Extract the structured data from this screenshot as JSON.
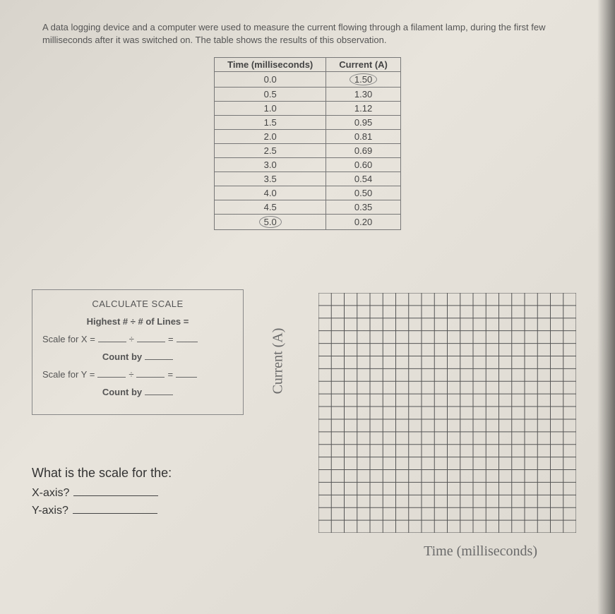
{
  "intro": "A data logging device and a computer were used to measure the current flowing through a filament lamp, during the first few milliseconds after it was switched on. The table shows the results of this observation.",
  "data_table": {
    "headers": [
      "Time (milliseconds)",
      "Current (A)"
    ],
    "rows": [
      [
        "0.0",
        "1.50"
      ],
      [
        "0.5",
        "1.30"
      ],
      [
        "1.0",
        "1.12"
      ],
      [
        "1.5",
        "0.95"
      ],
      [
        "2.0",
        "0.81"
      ],
      [
        "2.5",
        "0.69"
      ],
      [
        "3.0",
        "0.60"
      ],
      [
        "3.5",
        "0.54"
      ],
      [
        "4.0",
        "0.50"
      ],
      [
        "4.5",
        "0.35"
      ],
      [
        "5.0",
        "0.20"
      ]
    ],
    "circled_cells": [
      [
        0,
        1
      ],
      [
        10,
        0
      ]
    ]
  },
  "calc_box": {
    "title": "CALCULATE SCALE",
    "formula": "Highest #  ÷  # of Lines =",
    "scale_x_label": "Scale for X =",
    "scale_y_label": "Scale for Y =",
    "count_by": "Count by",
    "divide": "÷",
    "equals": "="
  },
  "questions": {
    "title": "What is the scale for the:",
    "x": "X-axis?",
    "y": "Y-axis?"
  },
  "handwritten": {
    "y_label": "Current (A)",
    "x_label": "Time (milliseconds)"
  },
  "grid": {
    "cols": 20,
    "rows": 19,
    "line_color": "#555555",
    "bg": "transparent"
  },
  "colors": {
    "paper": "#e0dcd4",
    "text": "#3a3a3a",
    "border": "#777777"
  }
}
